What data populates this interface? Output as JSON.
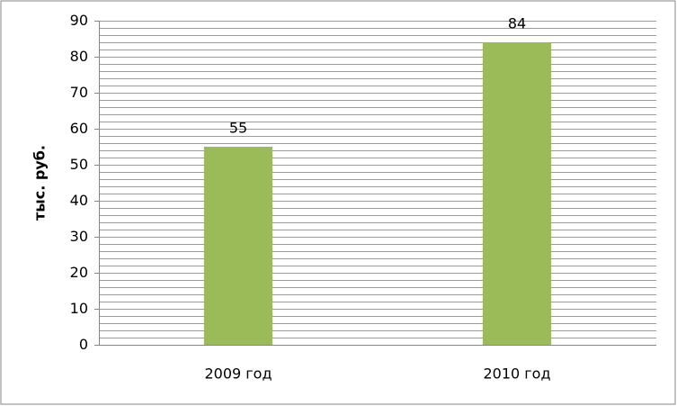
{
  "chart_data": {
    "type": "bar",
    "y_label": "тыс. руб.",
    "categories": [
      "2009 год",
      "2010 год"
    ],
    "values": [
      55,
      84
    ],
    "color": "#9bbb59",
    "ylim": [
      0,
      90
    ],
    "yticks": [
      0,
      10,
      20,
      30,
      40,
      50,
      60,
      70,
      80,
      90
    ],
    "minor_gridlines": [
      0,
      2,
      4,
      6,
      8,
      10,
      12,
      14,
      16,
      18,
      20,
      22,
      24,
      26,
      28,
      30,
      32,
      34,
      36,
      38,
      40,
      42,
      44,
      46,
      48,
      50,
      52,
      54,
      56,
      58,
      60,
      62,
      64,
      66,
      68,
      70,
      72,
      74,
      76,
      78,
      80,
      82,
      84,
      86,
      88,
      90
    ],
    "grid": true
  }
}
